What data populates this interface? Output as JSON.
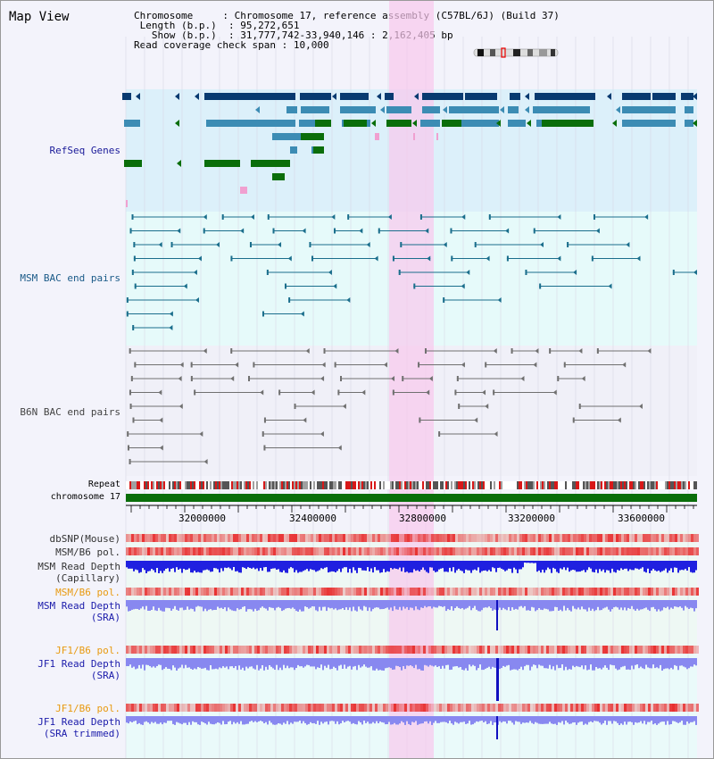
{
  "view_title": "Map View",
  "info": {
    "chromosome_key": "Chromosome",
    "chromosome_value": "Chromosome 17, reference assembly (C57BL/6J) (Build 37)",
    "length_key": "Length (b.p.)",
    "length_value": "95,272,651",
    "show_key": "Show (b.p.)",
    "show_value": "31,777,742-33,940,146 : 2,162,405 bp",
    "coverage_key": "Read coverage check span",
    "coverage_value": "10,000"
  },
  "tracks": {
    "refseq": "RefSeq Genes",
    "msm_bac": "MSM BAC end pairs",
    "b6n_bac": "B6N BAC end pairs",
    "repeat": "Repeat",
    "chromosome": "chromosome 17",
    "dbsnp": "dbSNP(Mouse)",
    "msm_b6_pol": "MSM/B6 pol.",
    "msm_depth_cap_1": "MSM Read Depth",
    "msm_depth_cap_2": "(Capillary)",
    "msm_b6_pol_sra": "MSM/B6 pol.",
    "msm_depth_sra_1": "MSM Read Depth",
    "msm_depth_sra_2": "(SRA)",
    "jf1_b6_pol": "JF1/B6 pol.",
    "jf1_depth_1": "JF1 Read Depth",
    "jf1_depth_2": "(SRA)",
    "jf1_b6_pol_trim": "JF1/B6 pol.",
    "jf1_depth_trim_1": "JF1 Read Depth",
    "jf1_depth_trim_2": "(SRA trimmed)"
  },
  "ruler": {
    "ticks": [
      "32000000",
      "32400000",
      "32800000",
      "33200000",
      "33600000"
    ]
  },
  "colors": {
    "refseq_bg": "#dcf0fa",
    "msm_bg": "#e6fafa",
    "b6n_bg": "#f0f0f8",
    "highlight": "#f8c8ec",
    "gene_navy": "#083a70",
    "gene_steel": "#3c8cb4",
    "gene_green": "#0a6e0a",
    "bac_teal": "#1a6e8c",
    "bac_gray": "#707070",
    "chrom_green": "#0a6e0a",
    "depth_blue": "#2020e0",
    "depth_light": "#8888f0",
    "heat_red": "#e83030"
  }
}
